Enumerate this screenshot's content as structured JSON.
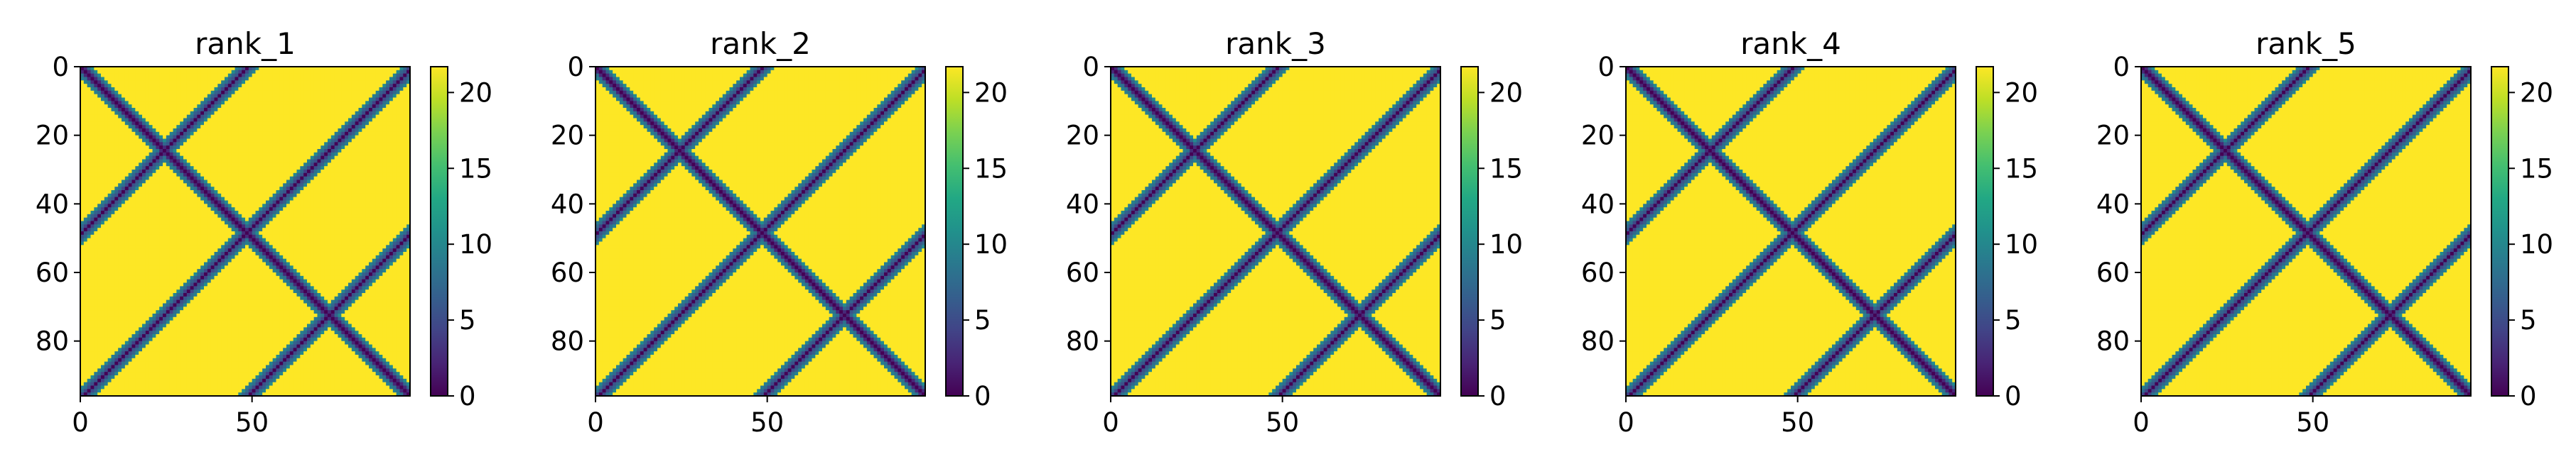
{
  "chart_data": [
    {
      "type": "heatmap",
      "title": "rank_1",
      "x_ticks": [
        0,
        50
      ],
      "y_ticks": [
        0,
        20,
        40,
        60,
        80
      ],
      "extent": [
        0,
        96
      ],
      "colorbar": {
        "ticks": [
          0,
          5,
          10,
          15,
          20
        ],
        "range": [
          0,
          21.7
        ]
      },
      "colormap": "viridis",
      "pattern": {
        "main_diagonal": true,
        "anti_diagonal_offsets": [
          48,
          96,
          144
        ],
        "band_width": 3.5
      }
    },
    {
      "type": "heatmap",
      "title": "rank_2",
      "x_ticks": [
        0,
        50
      ],
      "y_ticks": [
        0,
        20,
        40,
        60,
        80
      ],
      "extent": [
        0,
        96
      ],
      "colorbar": {
        "ticks": [
          0,
          5,
          10,
          15,
          20
        ],
        "range": [
          0,
          21.7
        ]
      },
      "colormap": "viridis",
      "pattern": {
        "main_diagonal": true,
        "anti_diagonal_offsets": [
          48,
          96,
          144
        ],
        "band_width": 3.5
      }
    },
    {
      "type": "heatmap",
      "title": "rank_3",
      "x_ticks": [
        0,
        50
      ],
      "y_ticks": [
        0,
        20,
        40,
        60,
        80
      ],
      "extent": [
        0,
        96
      ],
      "colorbar": {
        "ticks": [
          0,
          5,
          10,
          15,
          20
        ],
        "range": [
          0,
          21.7
        ]
      },
      "colormap": "viridis",
      "pattern": {
        "main_diagonal": true,
        "anti_diagonal_offsets": [
          48,
          96,
          144
        ],
        "band_width": 3.5
      }
    },
    {
      "type": "heatmap",
      "title": "rank_4",
      "x_ticks": [
        0,
        50
      ],
      "y_ticks": [
        0,
        20,
        40,
        60,
        80
      ],
      "extent": [
        0,
        96
      ],
      "colorbar": {
        "ticks": [
          0,
          5,
          10,
          15,
          20
        ],
        "range": [
          0,
          21.7
        ]
      },
      "colormap": "viridis",
      "pattern": {
        "main_diagonal": true,
        "anti_diagonal_offsets": [
          48,
          96,
          144
        ],
        "band_width": 3.5
      }
    },
    {
      "type": "heatmap",
      "title": "rank_5",
      "x_ticks": [
        0,
        50
      ],
      "y_ticks": [
        0,
        20,
        40,
        60,
        80
      ],
      "extent": [
        0,
        96
      ],
      "colorbar": {
        "ticks": [
          0,
          5,
          10,
          15,
          20
        ],
        "range": [
          0,
          21.7
        ]
      },
      "colormap": "viridis",
      "pattern": {
        "main_diagonal": true,
        "anti_diagonal_offsets": [
          48,
          96,
          144
        ],
        "band_width": 3.5
      }
    }
  ]
}
